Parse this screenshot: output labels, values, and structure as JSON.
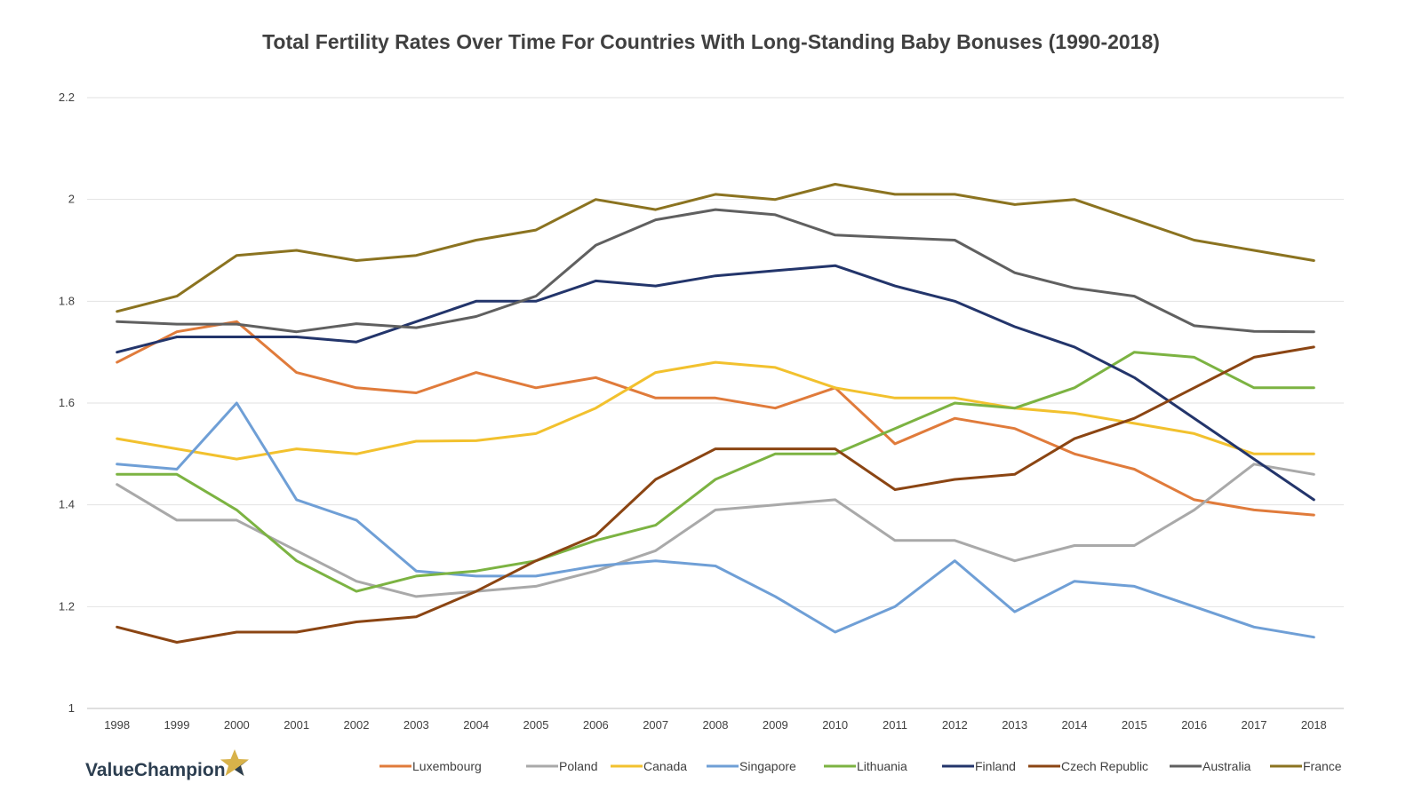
{
  "brand": {
    "name": "ValueChampion"
  },
  "chart_data": {
    "type": "line",
    "title": "Total Fertility Rates Over Time For Countries With Long-Standing Baby Bonuses (1990-2018)",
    "xlabel": "",
    "ylabel": "",
    "x": [
      "1998",
      "1999",
      "2000",
      "2001",
      "2002",
      "2003",
      "2004",
      "2005",
      "2006",
      "2007",
      "2008",
      "2009",
      "2010",
      "2011",
      "2012",
      "2013",
      "2014",
      "2015",
      "2016",
      "2017",
      "2018"
    ],
    "ylim": [
      1,
      2.2
    ],
    "yticks": [
      "1",
      "1.2",
      "1.4",
      "1.6",
      "1.8",
      "2",
      "2.2"
    ],
    "grid": true,
    "legend_position": "bottom",
    "series": [
      {
        "name": "Luxembourg",
        "color": "#e07b3b",
        "values": [
          1.68,
          1.74,
          1.76,
          1.66,
          1.63,
          1.62,
          1.66,
          1.63,
          1.65,
          1.61,
          1.61,
          1.59,
          1.63,
          1.52,
          1.57,
          1.55,
          1.5,
          1.47,
          1.41,
          1.39,
          1.38
        ]
      },
      {
        "name": "Poland",
        "color": "#a9a9a9",
        "values": [
          1.44,
          1.37,
          1.37,
          1.31,
          1.25,
          1.22,
          1.23,
          1.24,
          1.27,
          1.31,
          1.39,
          1.4,
          1.41,
          1.33,
          1.33,
          1.29,
          1.32,
          1.32,
          1.39,
          1.48,
          1.46
        ]
      },
      {
        "name": "Canada",
        "color": "#f2c12e",
        "values": [
          1.53,
          1.51,
          1.49,
          1.51,
          1.5,
          1.525,
          1.526,
          1.54,
          1.59,
          1.66,
          1.68,
          1.67,
          1.63,
          1.61,
          1.61,
          1.59,
          1.58,
          1.56,
          1.54,
          1.5,
          1.5
        ]
      },
      {
        "name": "Singapore",
        "color": "#6f9fd6",
        "values": [
          1.48,
          1.47,
          1.6,
          1.41,
          1.37,
          1.27,
          1.26,
          1.26,
          1.28,
          1.29,
          1.28,
          1.22,
          1.15,
          1.2,
          1.29,
          1.19,
          1.25,
          1.24,
          1.2,
          1.16,
          1.14
        ]
      },
      {
        "name": "Lithuania",
        "color": "#7cb342",
        "values": [
          1.46,
          1.46,
          1.39,
          1.29,
          1.23,
          1.26,
          1.27,
          1.29,
          1.33,
          1.36,
          1.45,
          1.5,
          1.5,
          1.55,
          1.6,
          1.59,
          1.63,
          1.7,
          1.69,
          1.63,
          1.63
        ]
      },
      {
        "name": "Finland",
        "color": "#23356b",
        "values": [
          1.7,
          1.73,
          1.73,
          1.73,
          1.72,
          1.76,
          1.8,
          1.8,
          1.84,
          1.83,
          1.85,
          1.86,
          1.87,
          1.83,
          1.8,
          1.75,
          1.71,
          1.65,
          1.57,
          1.49,
          1.41
        ]
      },
      {
        "name": "Czech Republic",
        "color": "#8b4513",
        "values": [
          1.16,
          1.13,
          1.15,
          1.15,
          1.17,
          1.18,
          1.23,
          1.29,
          1.34,
          1.45,
          1.51,
          1.51,
          1.51,
          1.43,
          1.45,
          1.46,
          1.53,
          1.57,
          1.63,
          1.69,
          1.71
        ]
      },
      {
        "name": "Australia",
        "color": "#606060",
        "values": [
          1.76,
          1.755,
          1.755,
          1.74,
          1.756,
          1.748,
          1.77,
          1.81,
          1.91,
          1.96,
          1.98,
          1.97,
          1.93,
          1.925,
          1.92,
          1.856,
          1.826,
          1.81,
          1.752,
          1.741,
          1.74
        ]
      },
      {
        "name": "France",
        "color": "#8b7320",
        "values": [
          1.78,
          1.81,
          1.89,
          1.9,
          1.88,
          1.89,
          1.92,
          1.94,
          2.0,
          1.98,
          2.01,
          2.0,
          2.03,
          2.01,
          2.01,
          1.99,
          2.0,
          1.96,
          1.92,
          1.9,
          1.88
        ]
      }
    ]
  }
}
